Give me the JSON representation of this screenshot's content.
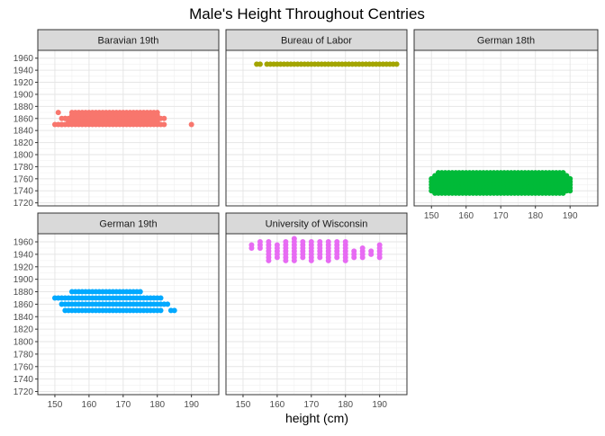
{
  "chart_data": {
    "type": "scatter",
    "title": "Male's Height Throughout Centries",
    "xlabel": "height (cm)",
    "ylabel": "",
    "xlim": [
      145,
      198
    ],
    "ylim": [
      1715,
      1973
    ],
    "x_ticks": [
      "150",
      "160",
      "170",
      "180",
      "190"
    ],
    "y_ticks": [
      "1720",
      "1740",
      "1760",
      "1780",
      "1800",
      "1820",
      "1840",
      "1860",
      "1880",
      "1900",
      "1920",
      "1940",
      "1960"
    ],
    "facet_layout": "3 columns x 2 rows, shared y-axis per row, x-axis under bottom panel in each column",
    "grid": true,
    "legend": "none",
    "panels": [
      {
        "name": "Baravian 19th",
        "color": "#F8766D",
        "description_of_shape": "dense points at years 1850-1870",
        "points": [
          [
            151,
            1870
          ],
          [
            152,
            1850
          ],
          [
            153,
            1860
          ],
          [
            190,
            1850
          ]
        ],
        "bands": [
          {
            "y": 1870,
            "x_min": 155,
            "x_max": 180
          },
          {
            "y": 1865,
            "x_min": 155,
            "x_max": 180
          },
          {
            "y": 1860,
            "x_min": 152,
            "x_max": 182
          },
          {
            "y": 1855,
            "x_min": 154,
            "x_max": 180
          },
          {
            "y": 1850,
            "x_min": 150,
            "x_max": 182
          }
        ]
      },
      {
        "name": "Bureau of Labor",
        "color": "#A3A500",
        "points": [
          [
            154,
            1950
          ],
          [
            155,
            1950
          ],
          [
            157,
            1950
          ]
        ],
        "bands": [
          {
            "y": 1950,
            "x_min": 158,
            "x_max": 195
          }
        ]
      },
      {
        "name": "German 18th",
        "color": "#00BA38",
        "points": [],
        "bands": [
          {
            "y": 1770,
            "x_min": 152,
            "x_max": 188
          },
          {
            "y": 1765,
            "x_min": 151,
            "x_max": 189
          },
          {
            "y": 1760,
            "x_min": 150,
            "x_max": 190
          },
          {
            "y": 1755,
            "x_min": 150,
            "x_max": 190
          },
          {
            "y": 1750,
            "x_min": 150,
            "x_max": 190
          },
          {
            "y": 1745,
            "x_min": 150,
            "x_max": 190
          },
          {
            "y": 1740,
            "x_min": 150,
            "x_max": 190
          },
          {
            "y": 1736,
            "x_min": 151,
            "x_max": 188
          }
        ]
      },
      {
        "name": "German 19th",
        "color": "#00A9FF",
        "points": [
          [
            184,
            1850
          ],
          [
            185,
            1850
          ],
          [
            183,
            1860
          ]
        ],
        "bands": [
          {
            "y": 1880,
            "x_min": 155,
            "x_max": 175
          },
          {
            "y": 1870,
            "x_min": 150,
            "x_max": 181
          },
          {
            "y": 1860,
            "x_min": 152,
            "x_max": 182
          },
          {
            "y": 1850,
            "x_min": 153,
            "x_max": 181
          }
        ]
      },
      {
        "name": "University of Wisconsin",
        "color": "#E76BF3",
        "points": [],
        "columns": [
          {
            "x": 152.5,
            "years": [
              1950,
              1955
            ]
          },
          {
            "x": 155,
            "years": [
              1950,
              1955,
              1960
            ]
          },
          {
            "x": 157.5,
            "years": [
              1930,
              1935,
              1940,
              1945,
              1950,
              1955,
              1960
            ]
          },
          {
            "x": 160,
            "years": [
              1935,
              1940,
              1945,
              1950,
              1955
            ]
          },
          {
            "x": 162.5,
            "years": [
              1930,
              1935,
              1940,
              1945,
              1950,
              1955,
              1960
            ]
          },
          {
            "x": 165,
            "years": [
              1930,
              1935,
              1940,
              1945,
              1950,
              1955,
              1960,
              1965
            ]
          },
          {
            "x": 167.5,
            "years": [
              1935,
              1940,
              1945,
              1950,
              1955,
              1960
            ]
          },
          {
            "x": 170,
            "years": [
              1930,
              1935,
              1940,
              1945,
              1950,
              1955,
              1960
            ]
          },
          {
            "x": 172.5,
            "years": [
              1935,
              1940,
              1945,
              1950,
              1955,
              1960
            ]
          },
          {
            "x": 175,
            "years": [
              1930,
              1935,
              1940,
              1945,
              1950,
              1955,
              1960
            ]
          },
          {
            "x": 177.5,
            "years": [
              1935,
              1940,
              1945,
              1950,
              1955,
              1960
            ]
          },
          {
            "x": 180,
            "years": [
              1930,
              1935,
              1940,
              1945,
              1950,
              1955,
              1960
            ]
          },
          {
            "x": 182.5,
            "years": [
              1935,
              1940,
              1945
            ]
          },
          {
            "x": 185,
            "years": [
              1935,
              1940,
              1945,
              1950
            ]
          },
          {
            "x": 187.5,
            "years": [
              1940,
              1945
            ]
          },
          {
            "x": 190,
            "years": [
              1935,
              1940,
              1945,
              1950,
              1955
            ]
          }
        ]
      }
    ]
  }
}
